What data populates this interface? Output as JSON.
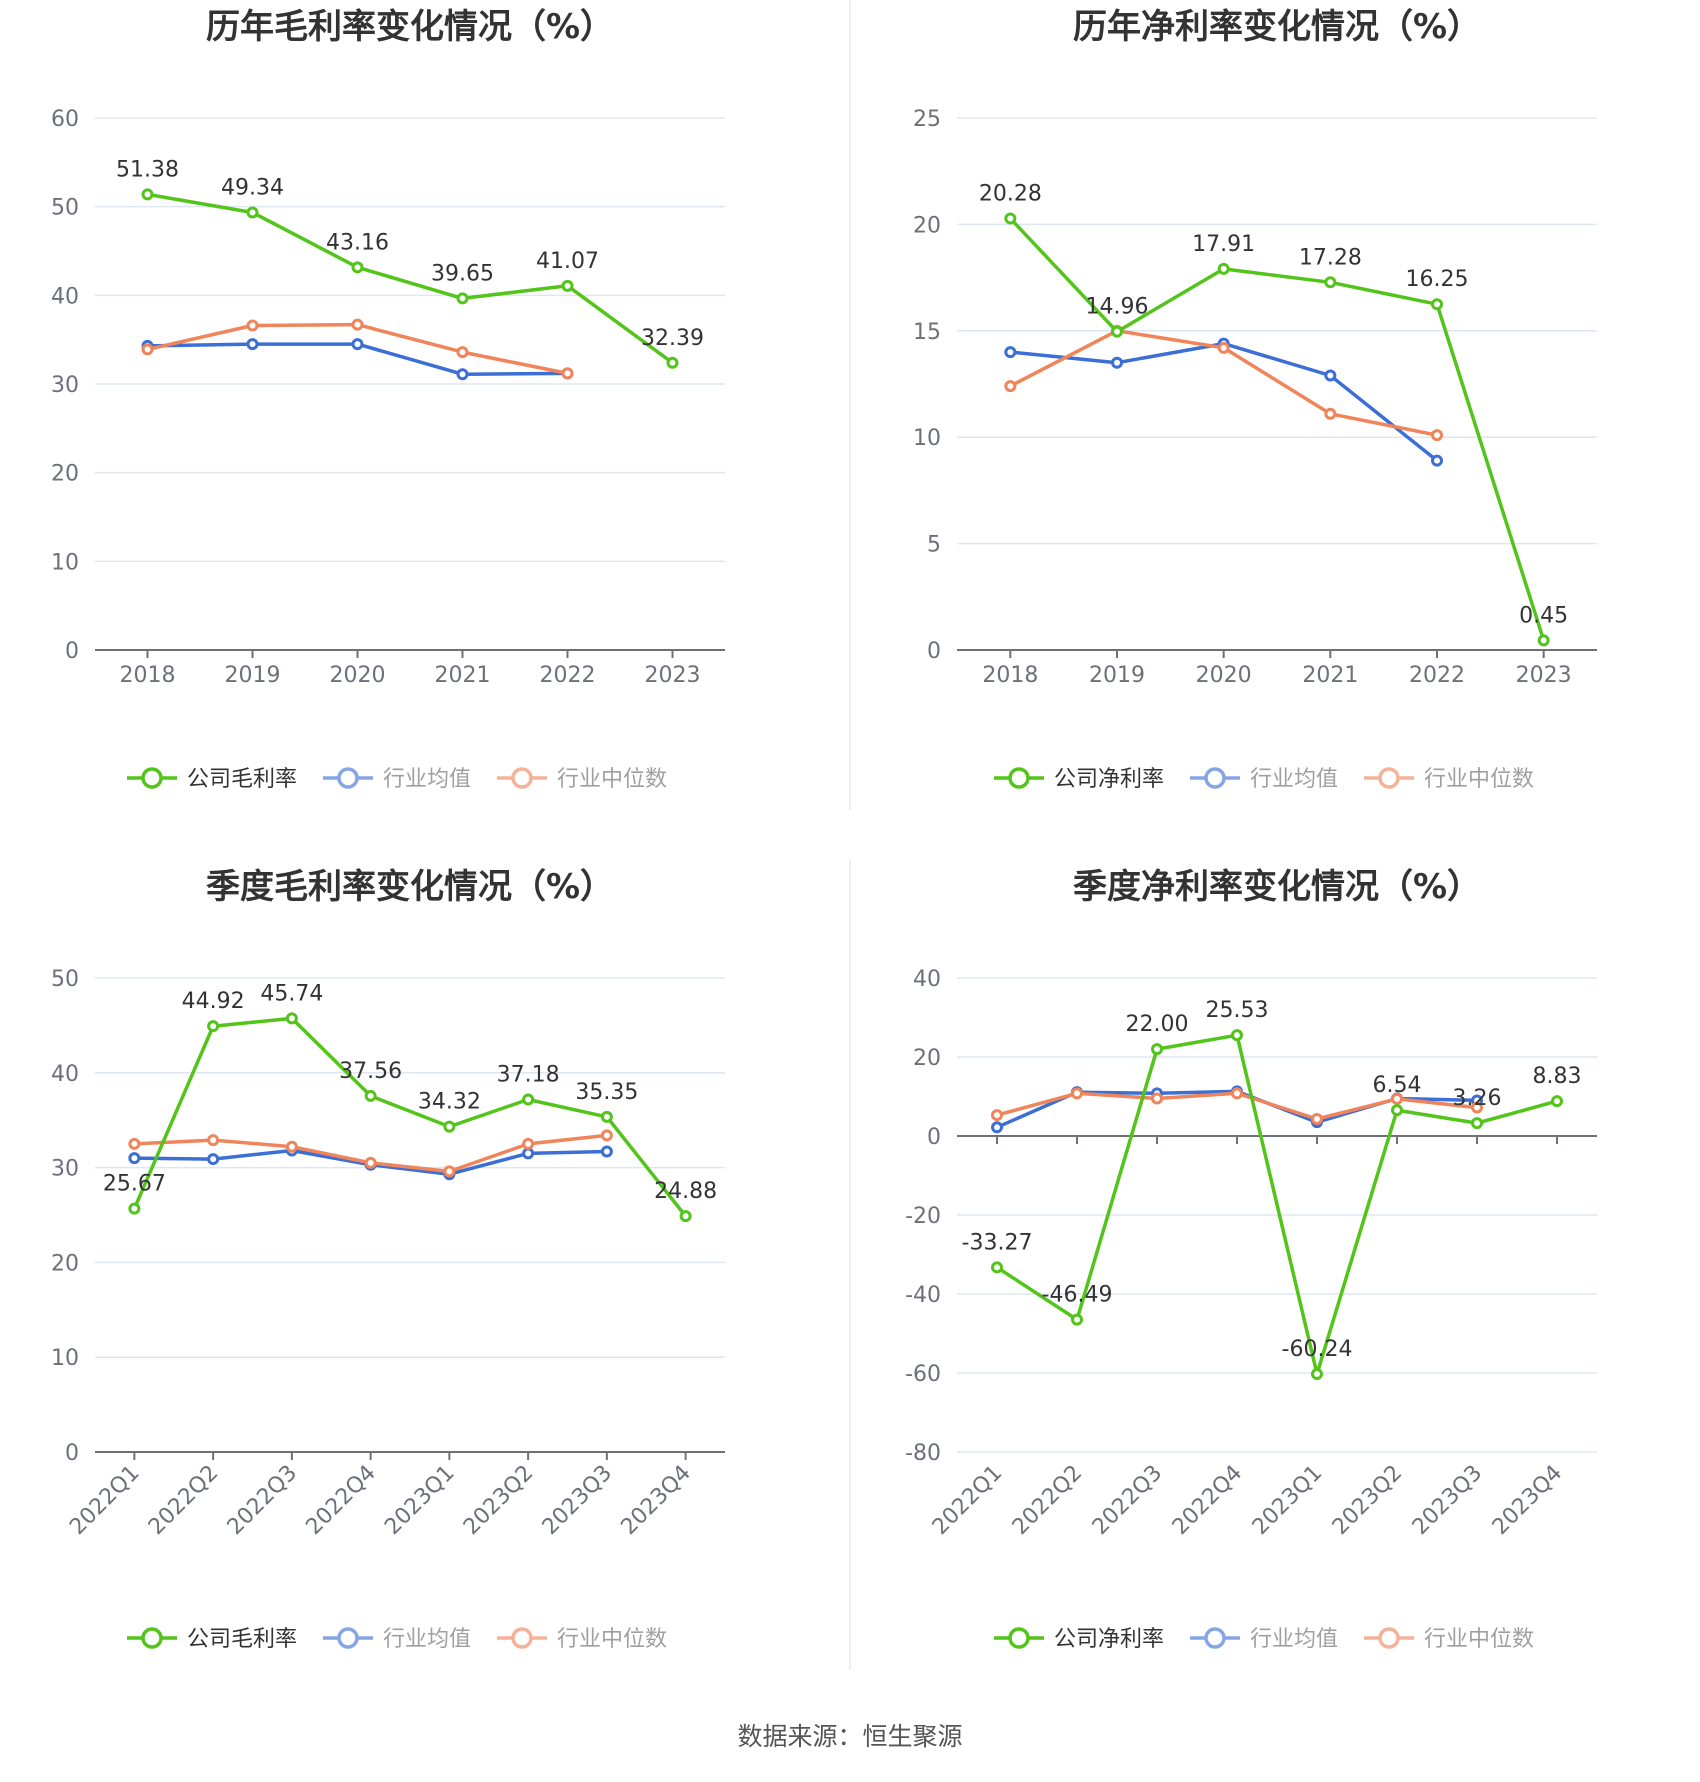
{
  "source": "数据来源：恒生聚源",
  "colors": {
    "company": "#52c41a",
    "mean": "#3b6fd6",
    "median": "#f0845a",
    "grid": "#e0e6f1",
    "axis": "#6e7079"
  },
  "chart_data": [
    {
      "type": "line",
      "title": "历年毛利率变化情况（%）",
      "categories": [
        "2018",
        "2019",
        "2020",
        "2021",
        "2022",
        "2023"
      ],
      "ylim": [
        0,
        60
      ],
      "ystep": 10,
      "grid": true,
      "legend_position": "bottom",
      "series": [
        {
          "name": "公司毛利率",
          "role": "company",
          "values": [
            51.38,
            49.34,
            43.16,
            39.65,
            41.07,
            32.39
          ],
          "labels": [
            "51.38",
            "49.34",
            "43.16",
            "39.65",
            "41.07",
            "32.39"
          ]
        },
        {
          "name": "行业均值",
          "role": "mean",
          "values": [
            34.3,
            34.5,
            34.5,
            31.1,
            31.2,
            null
          ]
        },
        {
          "name": "行业中位数",
          "role": "median",
          "values": [
            33.9,
            36.6,
            36.7,
            33.6,
            31.2,
            null
          ]
        }
      ]
    },
    {
      "type": "line",
      "title": "历年净利率变化情况（%）",
      "categories": [
        "2018",
        "2019",
        "2020",
        "2021",
        "2022",
        "2023"
      ],
      "ylim": [
        0,
        25
      ],
      "ystep": 5,
      "grid": true,
      "legend_position": "bottom",
      "series": [
        {
          "name": "公司净利率",
          "role": "company",
          "values": [
            20.28,
            14.96,
            17.91,
            17.28,
            16.25,
            0.45
          ],
          "labels": [
            "20.28",
            "14.96",
            "17.91",
            "17.28",
            "16.25",
            "0.45"
          ]
        },
        {
          "name": "行业均值",
          "role": "mean",
          "values": [
            14.0,
            13.5,
            14.4,
            12.9,
            8.9,
            null
          ]
        },
        {
          "name": "行业中位数",
          "role": "median",
          "values": [
            12.4,
            15.0,
            14.2,
            11.1,
            10.1,
            null
          ]
        }
      ]
    },
    {
      "type": "line",
      "title": "季度毛利率变化情况（%）",
      "categories": [
        "2022Q1",
        "2022Q2",
        "2022Q3",
        "2022Q4",
        "2023Q1",
        "2023Q2",
        "2023Q3",
        "2023Q4"
      ],
      "ylim": [
        0,
        50
      ],
      "ystep": 10,
      "grid": true,
      "legend_position": "bottom",
      "series": [
        {
          "name": "公司毛利率",
          "role": "company",
          "values": [
            25.67,
            44.92,
            45.74,
            37.56,
            34.32,
            37.18,
            35.35,
            24.88
          ],
          "labels": [
            "25.67",
            "44.92",
            "45.74",
            "37.56",
            "34.32",
            "37.18",
            "35.35",
            "24.88"
          ]
        },
        {
          "name": "行业均值",
          "role": "mean",
          "values": [
            31.0,
            30.9,
            31.8,
            30.3,
            29.3,
            31.5,
            31.7,
            null
          ]
        },
        {
          "name": "行业中位数",
          "role": "median",
          "values": [
            32.5,
            32.9,
            32.2,
            30.5,
            29.6,
            32.5,
            33.4,
            null
          ]
        }
      ]
    },
    {
      "type": "line",
      "title": "季度净利率变化情况（%）",
      "categories": [
        "2022Q1",
        "2022Q2",
        "2022Q3",
        "2022Q4",
        "2023Q1",
        "2023Q2",
        "2023Q3",
        "2023Q4"
      ],
      "ylim": [
        -80,
        40
      ],
      "ystep": 20,
      "grid": true,
      "legend_position": "bottom",
      "series": [
        {
          "name": "公司净利率",
          "role": "company",
          "values": [
            -33.27,
            -46.49,
            22.0,
            25.53,
            -60.24,
            6.54,
            3.26,
            8.83
          ],
          "labels": [
            "-33.27",
            "-46.49",
            "22.00",
            "25.53",
            "-60.24",
            "6.54",
            "3.26",
            "8.83"
          ]
        },
        {
          "name": "行业均值",
          "role": "mean",
          "values": [
            2.2,
            11.1,
            10.8,
            11.3,
            3.5,
            9.5,
            9.0,
            null
          ]
        },
        {
          "name": "行业中位数",
          "role": "median",
          "values": [
            5.3,
            10.8,
            9.5,
            10.8,
            4.3,
            9.4,
            7.2,
            null
          ]
        }
      ]
    }
  ]
}
